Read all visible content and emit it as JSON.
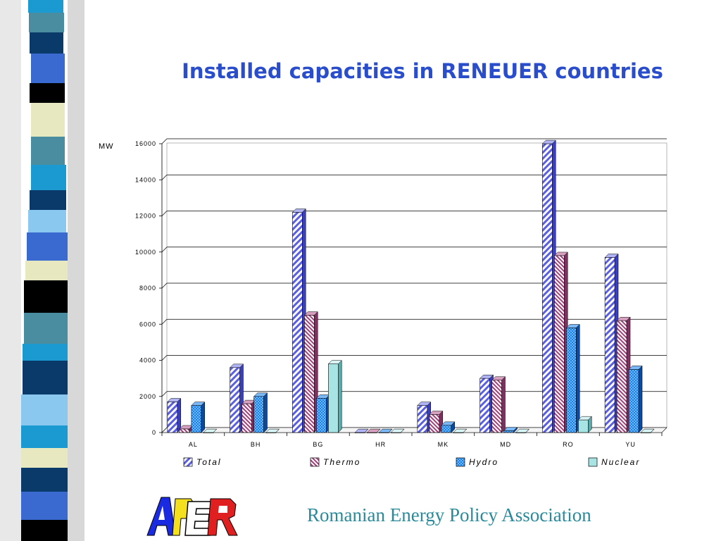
{
  "slide": {
    "title": "Installed capacities in RENEUER countries",
    "organization": "Romanian Energy Policy Association",
    "logo_text": "APER"
  },
  "colors": {
    "title": "#2a4ecb",
    "organization": "#2a8a9a",
    "total": "#5a5ee0",
    "thermo": "#a0407a",
    "hydro": "#1f7fe0",
    "nuclear": "#a8e4e4"
  },
  "chart_data": {
    "type": "bar",
    "title": "",
    "xlabel": "",
    "ylabel": "MW",
    "ylim": [
      0,
      16000
    ],
    "yticks": [
      "0",
      "2000",
      "4000",
      "6000",
      "8000",
      "10000",
      "12000",
      "14000",
      "16000"
    ],
    "grid": true,
    "legend": "bottom",
    "categories": [
      "AL",
      "BH",
      "BG",
      "HR",
      "MK",
      "MD",
      "RO",
      "YU"
    ],
    "series": [
      {
        "name": "Total",
        "values": [
          1700,
          3600,
          12200,
          0,
          1500,
          3000,
          16000,
          9700
        ]
      },
      {
        "name": "Thermo",
        "values": [
          200,
          1600,
          6500,
          0,
          1000,
          2900,
          9800,
          6200
        ]
      },
      {
        "name": "Hydro",
        "values": [
          1500,
          2000,
          1900,
          0,
          400,
          100,
          5800,
          3500
        ]
      },
      {
        "name": "Nuclear",
        "values": [
          0,
          0,
          3800,
          0,
          0,
          0,
          700,
          0
        ]
      }
    ]
  }
}
